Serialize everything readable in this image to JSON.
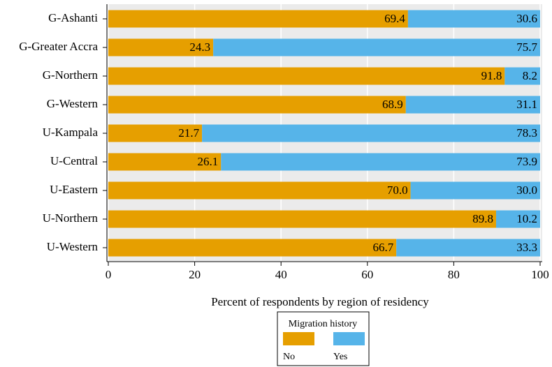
{
  "chart_data": {
    "type": "stacked-barh",
    "x_label": "Percent of respondents by region of residency",
    "categories": [
      "G-Ashanti",
      "G-Greater Accra",
      "G-Northern",
      "G-Western",
      "U-Kampala",
      "U-Central",
      "U-Eastern",
      "U-Northern",
      "U-Western"
    ],
    "series": [
      {
        "name": "No",
        "color": "#e69f00",
        "values": [
          69.4,
          24.3,
          91.8,
          68.9,
          21.7,
          26.1,
          70,
          89.8,
          66.7
        ],
        "value_labels": [
          "69.4",
          "24.3",
          "91.8",
          "68.9",
          "21.7",
          "26.1",
          "70.0",
          "89.8",
          "66.7"
        ]
      },
      {
        "name": "Yes",
        "color": "#56b4e9",
        "values": [
          30.6,
          75.7,
          8.2,
          31.1,
          78.3,
          73.9,
          30,
          10.2,
          33.3
        ],
        "value_labels": [
          "30.6",
          "75.7",
          "8.2",
          "31.1",
          "78.3",
          "73.9",
          "30.0",
          "10.2",
          "33.3"
        ]
      }
    ],
    "xlim": [
      0,
      100
    ],
    "xticks": [
      0,
      20,
      40,
      60,
      80,
      100
    ],
    "grid": true,
    "legend_title": "Migration history",
    "legend_position": "bottom"
  }
}
